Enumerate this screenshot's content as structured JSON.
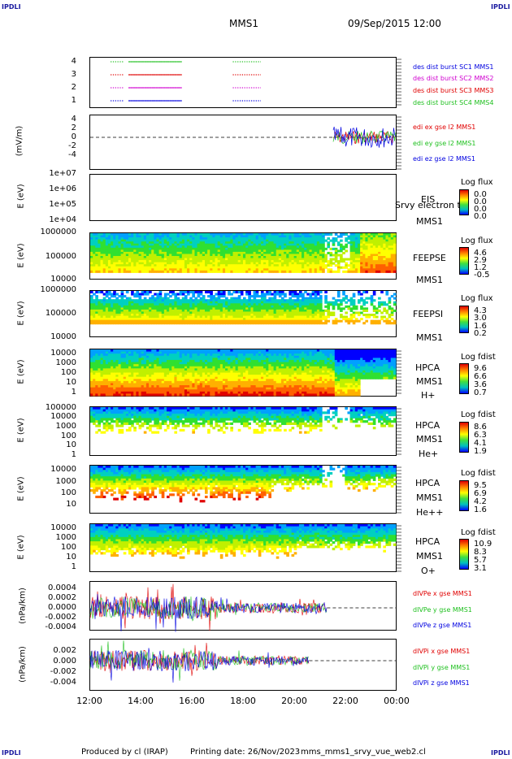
{
  "corners": {
    "top_left": "IPDLI",
    "top_right": "IPDLI",
    "bottom_left": "IPDLI",
    "bottom_right": "IPDLI"
  },
  "header": {
    "mission": "MMS1",
    "datetime": "09/Sep/2015 12:00"
  },
  "footer": {
    "produced": "Produced by cl (IRAP)",
    "printing": "Printing date: 26/Nov/2023",
    "file": "mms_mms1_srvy_vue_web2.cl"
  },
  "colors": {
    "red": "#e00000",
    "green": "#20c020",
    "blue": "#0000e0",
    "magenta": "#d000d0",
    "gradient": [
      "#e00000",
      "#ff8000",
      "#ffff00",
      "#40e040",
      "#00c0c0",
      "#0000ff"
    ]
  },
  "chart_data": [
    {
      "type": "line",
      "id": "burst",
      "y_ticks": [
        "4",
        "3",
        "2",
        "1"
      ],
      "ylim": [
        0.5,
        4.5
      ],
      "legend": [
        {
          "text": "des dist burst SC1 MMS1",
          "color": "#0000e0"
        },
        {
          "text": "des dist burst SC2 MMS2",
          "color": "#d000d0"
        },
        {
          "text": "des dist burst SC3 MMS3",
          "color": "#e00000"
        },
        {
          "text": "des dist burst SC4 MMS4",
          "color": "#20c020"
        }
      ],
      "x_hours": [
        12,
        24
      ],
      "intervals": [
        [
          12.8,
          13.3
        ],
        [
          13.5,
          15.6
        ],
        [
          17.6,
          18.7
        ]
      ]
    },
    {
      "type": "line",
      "id": "edi",
      "ylabel": "(mV/m)",
      "y_ticks": [
        "4",
        "2",
        "0",
        "-2",
        "-4"
      ],
      "ylim": [
        -5,
        5
      ],
      "legend": [
        {
          "text": "edi ex gse l2 MMS1",
          "color": "#e00000"
        },
        {
          "text": "edi ey gse l2 MMS1",
          "color": "#20c020"
        },
        {
          "text": "edi ez gse l2 MMS1",
          "color": "#0000e0"
        }
      ],
      "data_range_hours": [
        21.6,
        24
      ]
    },
    {
      "type": "heatmap",
      "id": "eis",
      "ylabel": "E (eV)",
      "y_ticks": [
        "1e+07",
        "1e+06",
        "1e+05",
        "1e+04"
      ],
      "instrument": "EIS",
      "spacecraft": "MMS1",
      "overlay": "Srvy electron ts",
      "colorbar": {
        "title": "Log flux",
        "ticks": [
          "0.0",
          "0.0",
          "0.0",
          "0.0"
        ]
      }
    },
    {
      "type": "heatmap",
      "id": "feepse",
      "ylabel": "E (eV)",
      "y_ticks": [
        "1000000",
        "100000",
        "10000"
      ],
      "instrument": "FEEPSE",
      "spacecraft": "MMS1",
      "colorbar": {
        "title": "Log flux",
        "ticks": [
          "4.6",
          "2.9",
          "1.2",
          "-0.5"
        ]
      }
    },
    {
      "type": "heatmap",
      "id": "feepsi",
      "ylabel": "E (eV)",
      "y_ticks": [
        "1000000",
        "100000",
        "10000"
      ],
      "instrument": "FEEPSI",
      "spacecraft": "MMS1",
      "colorbar": {
        "title": "Log flux",
        "ticks": [
          "4.3",
          "3.0",
          "1.6",
          "0.2"
        ]
      }
    },
    {
      "type": "heatmap",
      "id": "hpca_h",
      "ylabel": "E (eV)",
      "y_ticks": [
        "10000",
        "1000",
        "100",
        "10",
        "1"
      ],
      "instrument": "HPCA",
      "spacecraft": "MMS1",
      "species": "H+",
      "colorbar": {
        "title": "Log fdist",
        "ticks": [
          "9.6",
          "6.6",
          "3.6",
          "0.7"
        ]
      }
    },
    {
      "type": "heatmap",
      "id": "hpca_he",
      "ylabel": "E (eV)",
      "y_ticks": [
        "100000",
        "10000",
        "1000",
        "100",
        "10",
        "1"
      ],
      "instrument": "HPCA",
      "spacecraft": "MMS1",
      "species": "He+",
      "colorbar": {
        "title": "Log fdist",
        "ticks": [
          "8.6",
          "6.3",
          "4.1",
          "1.9"
        ]
      }
    },
    {
      "type": "heatmap",
      "id": "hpca_hepp",
      "ylabel": "E (eV)",
      "y_ticks": [
        "10000",
        "1000",
        "100",
        "10"
      ],
      "instrument": "HPCA",
      "spacecraft": "MMS1",
      "species": "He++",
      "colorbar": {
        "title": "Log fdist",
        "ticks": [
          "9.5",
          "6.9",
          "4.2",
          "1.6"
        ]
      }
    },
    {
      "type": "heatmap",
      "id": "hpca_o",
      "ylabel": "E (eV)",
      "y_ticks": [
        "10000",
        "1000",
        "100",
        "10",
        "1"
      ],
      "instrument": "HPCA",
      "spacecraft": "MMS1",
      "species": "O+",
      "colorbar": {
        "title": "Log fdist",
        "ticks": [
          "10.9",
          "8.3",
          "5.7",
          "3.1"
        ]
      }
    },
    {
      "type": "line",
      "id": "divpe",
      "ylabel": "(nPa/km)",
      "y_ticks": [
        "0.0004",
        "0.0002",
        "0.0000",
        "-0.0002",
        "-0.0004"
      ],
      "ylim": [
        -0.0005,
        0.0005
      ],
      "legend": [
        {
          "text": "dIVPe x gse MMS1",
          "color": "#e00000"
        },
        {
          "text": "dIVPe y gse MMS1",
          "color": "#20c020"
        },
        {
          "text": "dIVPe z gse MMS1",
          "color": "#0000e0"
        }
      ],
      "data_range_hours": [
        12,
        21.3
      ]
    },
    {
      "type": "line",
      "id": "divpi",
      "ylabel": "(nPa/km)",
      "y_ticks": [
        "0.002",
        "0.000",
        "-0.002",
        "-0.004"
      ],
      "ylim": [
        -0.005,
        0.003
      ],
      "legend": [
        {
          "text": "dIVPi x gse MMS1",
          "color": "#e00000"
        },
        {
          "text": "dIVPi y gse MMS1",
          "color": "#20c020"
        },
        {
          "text": "dIVPi z gse MMS1",
          "color": "#0000e0"
        }
      ],
      "data_range_hours": [
        12,
        21.3
      ]
    }
  ],
  "x_axis": {
    "ticks": [
      "12:00",
      "14:00",
      "16:00",
      "18:00",
      "20:00",
      "22:00",
      "00:00"
    ]
  }
}
